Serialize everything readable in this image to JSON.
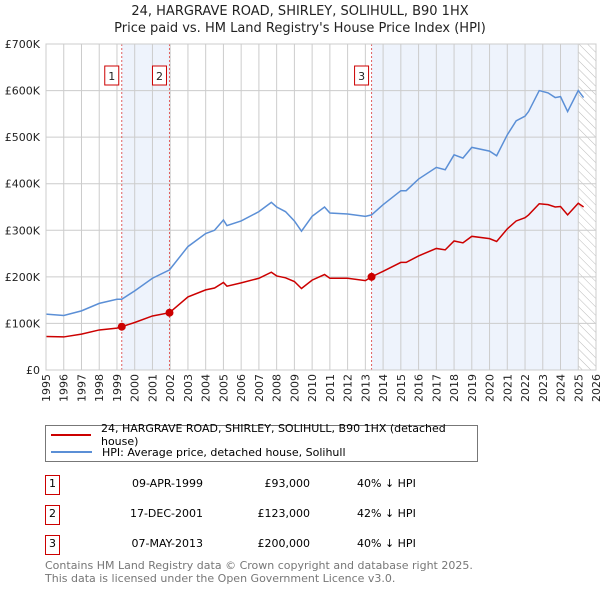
{
  "title": "24, HARGRAVE ROAD, SHIRLEY, SOLIHULL, B90 1HX",
  "subtitle": "Price paid vs. HM Land Registry's House Price Index (HPI)",
  "chart_data": {
    "type": "line",
    "title": "24, HARGRAVE ROAD, SHIRLEY, SOLIHULL, B90 1HX",
    "subtitle": "Price paid vs. HM Land Registry's House Price Index (HPI)",
    "xlim": [
      1995,
      2026
    ],
    "ylim": [
      0,
      700000
    ],
    "x_ticks": [
      "1995",
      "1996",
      "1997",
      "1998",
      "1999",
      "2000",
      "2001",
      "2002",
      "2003",
      "2004",
      "2005",
      "2006",
      "2007",
      "2008",
      "2009",
      "2010",
      "2011",
      "2012",
      "2013",
      "2014",
      "2015",
      "2016",
      "2017",
      "2018",
      "2019",
      "2020",
      "2021",
      "2022",
      "2023",
      "2024",
      "2025",
      "2026"
    ],
    "y_ticks": [
      {
        "v": 0,
        "label": "£0"
      },
      {
        "v": 100000,
        "label": "£100K"
      },
      {
        "v": 200000,
        "label": "£200K"
      },
      {
        "v": 300000,
        "label": "£300K"
      },
      {
        "v": 400000,
        "label": "£400K"
      },
      {
        "v": 500000,
        "label": "£500K"
      },
      {
        "v": 600000,
        "label": "£600K"
      },
      {
        "v": 700000,
        "label": "£700K"
      }
    ],
    "grid": true,
    "x": [
      1995,
      1996,
      1997,
      1998,
      1999,
      1999.27,
      2000,
      2001,
      2001.96,
      2003,
      2004,
      2004.5,
      2005,
      2005.2,
      2006,
      2007,
      2007.7,
      2008,
      2008.5,
      2009,
      2009.4,
      2010,
      2010.7,
      2011,
      2012,
      2013,
      2013.35,
      2014,
      2015,
      2015.3,
      2016,
      2017,
      2017.5,
      2018,
      2018.5,
      2019,
      2020,
      2020.4,
      2021,
      2021.5,
      2022,
      2022.2,
      2022.8,
      2023.3,
      2023.7,
      2024,
      2024.4,
      2025,
      2025.3
    ],
    "series": [
      {
        "name": "24, HARGRAVE ROAD, SHIRLEY, SOLIHULL, B90 1HX (detached house)",
        "color": "#cc0000",
        "values": [
          72000,
          71000,
          77000,
          86000,
          90000,
          93000,
          102000,
          116000,
          123000,
          157000,
          172000,
          176000,
          188000,
          180000,
          187000,
          197000,
          210000,
          202000,
          198000,
          190000,
          175000,
          193000,
          205000,
          197000,
          197000,
          192000,
          200000,
          212000,
          231000,
          231000,
          245000,
          261000,
          258000,
          277000,
          273000,
          287000,
          282000,
          276000,
          303000,
          320000,
          327000,
          333000,
          357000,
          355000,
          350000,
          351000,
          333000,
          358000,
          350000
        ]
      },
      {
        "name": "HPI: Average price, detached house, Solihull",
        "color": "#5b8fd6",
        "values": [
          120000,
          117000,
          127000,
          143000,
          152000,
          152000,
          170000,
          197000,
          215000,
          265000,
          293000,
          300000,
          322000,
          310000,
          320000,
          340000,
          360000,
          350000,
          340000,
          320000,
          298000,
          330000,
          350000,
          337000,
          335000,
          330000,
          333000,
          355000,
          385000,
          385000,
          410000,
          435000,
          430000,
          462000,
          455000,
          478000,
          470000,
          460000,
          505000,
          535000,
          545000,
          555000,
          600000,
          595000,
          585000,
          587000,
          555000,
          600000,
          585000
        ]
      }
    ],
    "sales": [
      {
        "n": "1",
        "x": 1999.27,
        "value": 93000,
        "date": "09-APR-1999",
        "price": "£93,000",
        "hpi": "40% ↓ HPI"
      },
      {
        "n": "2",
        "x": 2001.96,
        "value": 123000,
        "date": "17-DEC-2001",
        "price": "£123,000",
        "hpi": "42% ↓ HPI"
      },
      {
        "n": "3",
        "x": 2013.35,
        "value": 200000,
        "date": "07-MAY-2013",
        "price": "£200,000",
        "hpi": "40% ↓ HPI"
      }
    ],
    "shaded_ranges": [
      [
        1999.27,
        2001.96
      ],
      [
        2013.35,
        2025.0
      ]
    ],
    "forecast_hatch_from": 2025.0,
    "legend_position": "below"
  },
  "footer": [
    "Contains HM Land Registry data © Crown copyright and database right 2025.",
    "This data is licensed under the Open Government Licence v3.0."
  ]
}
